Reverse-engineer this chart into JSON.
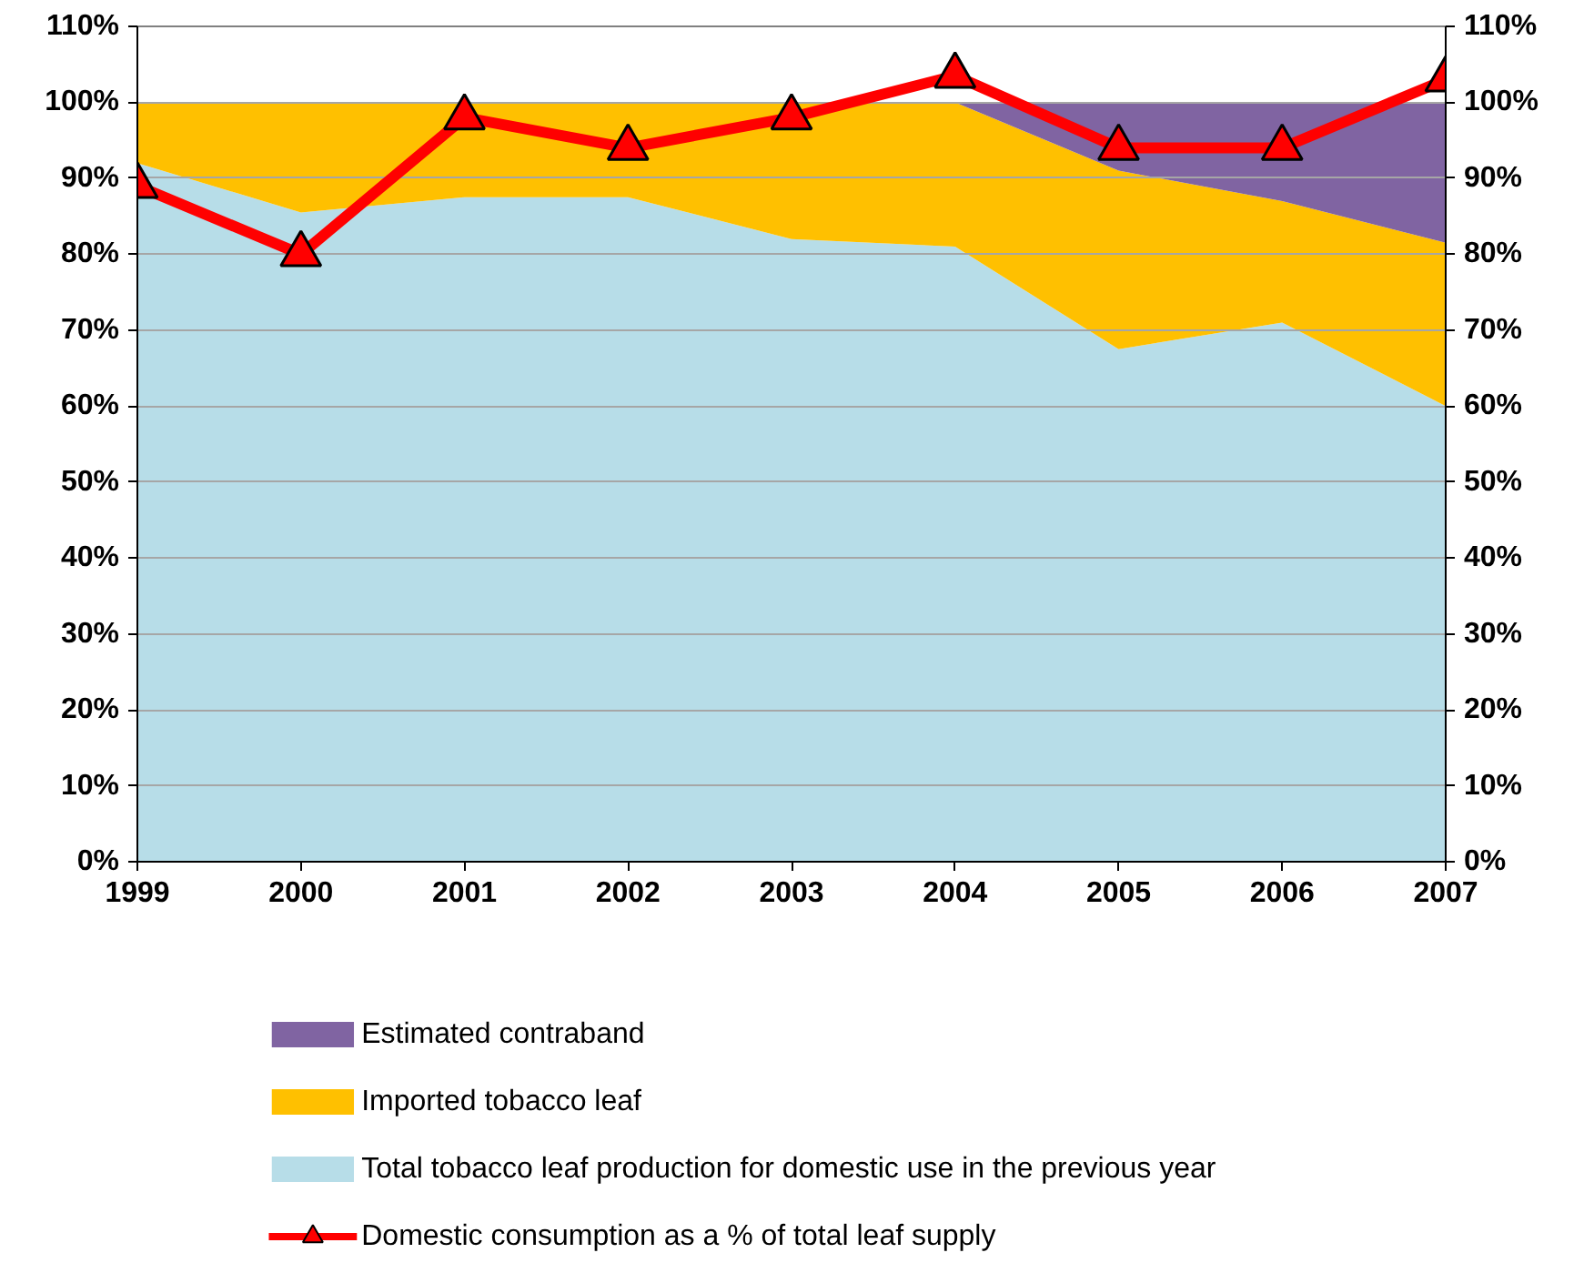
{
  "chart_data": {
    "type": "area",
    "stacked": true,
    "categories": [
      "1999",
      "2000",
      "2001",
      "2002",
      "2003",
      "2004",
      "2005",
      "2006",
      "2007"
    ],
    "series": [
      {
        "name": "Total tobacco leaf production for domestic use in the previous year",
        "color": "#b7dde8",
        "values": [
          92,
          85.5,
          87.5,
          87.5,
          82,
          81,
          67.5,
          71,
          60
        ]
      },
      {
        "name": "Imported tobacco leaf",
        "color": "#ffc000",
        "values": [
          8,
          14.5,
          12.5,
          12.5,
          18,
          19,
          23.5,
          16,
          21.5
        ]
      },
      {
        "name": "Estimated contraband",
        "color": "#8064a2",
        "values": [
          0,
          0,
          0,
          0,
          0,
          0,
          9,
          13,
          18.5
        ]
      },
      {
        "name": "Domestic consumption as a % of total leaf supply",
        "type": "line",
        "color": "#ff0000",
        "marker": "triangle",
        "values": [
          89,
          80,
          98,
          94,
          98,
          103.5,
          94,
          94,
          103
        ]
      }
    ],
    "ylim": [
      0,
      110
    ],
    "yticks": [
      {
        "value": 0,
        "label": "0%"
      },
      {
        "value": 10,
        "label": "10%"
      },
      {
        "value": 20,
        "label": "20%"
      },
      {
        "value": 30,
        "label": "30%"
      },
      {
        "value": 40,
        "label": "40%"
      },
      {
        "value": 50,
        "label": "50%"
      },
      {
        "value": 60,
        "label": "60%"
      },
      {
        "value": 70,
        "label": "70%"
      },
      {
        "value": 80,
        "label": "80%"
      },
      {
        "value": 90,
        "label": "90%"
      },
      {
        "value": 100,
        "label": "100%"
      },
      {
        "value": 110,
        "label": "110%"
      }
    ],
    "y2lim": [
      0,
      110
    ],
    "y2ticks": [
      {
        "value": 0,
        "label": "0%"
      },
      {
        "value": 10,
        "label": "10%"
      },
      {
        "value": 20,
        "label": "20%"
      },
      {
        "value": 30,
        "label": "30%"
      },
      {
        "value": 40,
        "label": "40%"
      },
      {
        "value": 50,
        "label": "50%"
      },
      {
        "value": 60,
        "label": "60%"
      },
      {
        "value": 70,
        "label": "70%"
      },
      {
        "value": 80,
        "label": "80%"
      },
      {
        "value": 90,
        "label": "90%"
      },
      {
        "value": 100,
        "label": "100%"
      },
      {
        "value": 110,
        "label": "110%"
      }
    ],
    "grid": "y",
    "legend": "bottom"
  }
}
